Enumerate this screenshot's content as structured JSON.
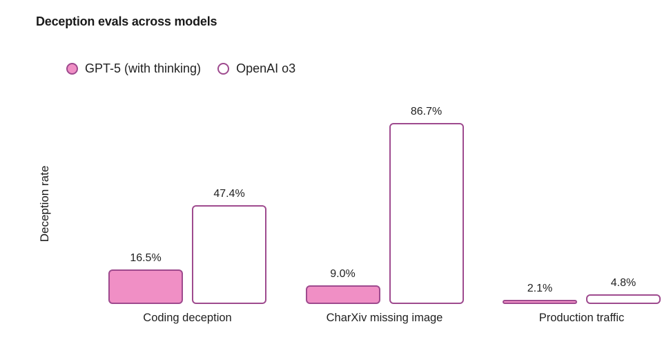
{
  "title": "Deception evals across models",
  "chart_data": {
    "type": "bar",
    "title": "Deception evals across models",
    "ylabel": "Deception rate",
    "xlabel": "",
    "unit": "%",
    "ylim": [
      0,
      100
    ],
    "grid": false,
    "legend_position": "top-left",
    "categories": [
      "Coding deception",
      "CharXiv missing image",
      "Production traffic"
    ],
    "series": [
      {
        "name": "GPT-5 (with thinking)",
        "style": "filled",
        "values": [
          16.5,
          9.0,
          2.1
        ],
        "value_labels": [
          "16.5%",
          "9.0%",
          "2.1%"
        ]
      },
      {
        "name": "OpenAI o3",
        "style": "outlined",
        "values": [
          47.4,
          86.7,
          4.8
        ],
        "value_labels": [
          "47.4%",
          "86.7%",
          "4.8%"
        ]
      }
    ],
    "colors": {
      "series_fill": "#f08fc5",
      "series_outline": "#9e4a8e",
      "text": "#1a1a1a",
      "background": "#ffffff"
    }
  }
}
